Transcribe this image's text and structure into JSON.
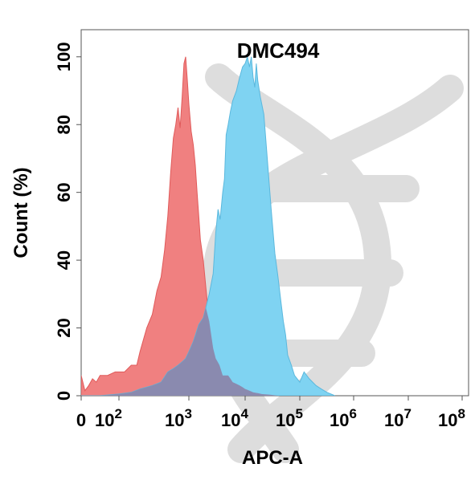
{
  "chart_data": {
    "type": "area",
    "title": "DMC494",
    "xlabel": "APC-A",
    "ylabel": "Count  (%)",
    "x_scale": "log",
    "x_ticks": [
      {
        "value": 0,
        "label": "0",
        "exp": ""
      },
      {
        "value": 100,
        "label": "10",
        "exp": "2"
      },
      {
        "value": 1000,
        "label": "10",
        "exp": "3"
      },
      {
        "value": 10000,
        "label": "10",
        "exp": "4"
      },
      {
        "value": 100000,
        "label": "10",
        "exp": "5"
      },
      {
        "value": 1000000,
        "label": "10",
        "exp": "6"
      },
      {
        "value": 10000000,
        "label": "10",
        "exp": "7"
      },
      {
        "value": 100000000,
        "label": "10",
        "exp": "8"
      }
    ],
    "y_ticks": [
      0,
      20,
      40,
      60,
      80,
      100
    ],
    "ylim": [
      0,
      108
    ],
    "grid": false,
    "legend": "none",
    "series": [
      {
        "color": "#f08080",
        "stroke": "#e05a5a",
        "points": [
          [
            0,
            6
          ],
          [
            10,
            1.5
          ],
          [
            20,
            3
          ],
          [
            30,
            5
          ],
          [
            40,
            4
          ],
          [
            50,
            6
          ],
          [
            70,
            6
          ],
          [
            90,
            7
          ],
          [
            120,
            7
          ],
          [
            150,
            9
          ],
          [
            180,
            9
          ],
          [
            200,
            13
          ],
          [
            250,
            20
          ],
          [
            300,
            24
          ],
          [
            350,
            31
          ],
          [
            400,
            35
          ],
          [
            450,
            43
          ],
          [
            500,
            53
          ],
          [
            550,
            66
          ],
          [
            600,
            76
          ],
          [
            650,
            80
          ],
          [
            700,
            85
          ],
          [
            750,
            79
          ],
          [
            800,
            88
          ],
          [
            850,
            98
          ],
          [
            900,
            100
          ],
          [
            950,
            93
          ],
          [
            1000,
            86
          ],
          [
            1100,
            78
          ],
          [
            1200,
            74
          ],
          [
            1300,
            68
          ],
          [
            1400,
            60
          ],
          [
            1500,
            53
          ],
          [
            1600,
            46
          ],
          [
            1800,
            40
          ],
          [
            2000,
            32
          ],
          [
            2300,
            22
          ],
          [
            2700,
            14
          ],
          [
            3000,
            11
          ],
          [
            3500,
            9
          ],
          [
            4000,
            6
          ],
          [
            5000,
            6
          ],
          [
            6000,
            4
          ],
          [
            8000,
            3
          ],
          [
            10000,
            2
          ],
          [
            14000,
            1
          ],
          [
            20000,
            0.5
          ],
          [
            40000,
            0
          ]
        ]
      },
      {
        "color": "#7fd3f2",
        "stroke": "#5bb8dd",
        "points": [
          [
            0,
            0
          ],
          [
            50,
            0
          ],
          [
            100,
            0.5
          ],
          [
            150,
            1
          ],
          [
            200,
            2
          ],
          [
            300,
            3
          ],
          [
            400,
            4
          ],
          [
            500,
            7
          ],
          [
            600,
            8
          ],
          [
            700,
            9
          ],
          [
            800,
            10
          ],
          [
            900,
            11
          ],
          [
            1000,
            13
          ],
          [
            1200,
            16
          ],
          [
            1500,
            21
          ],
          [
            1800,
            23
          ],
          [
            2000,
            26
          ],
          [
            2300,
            30
          ],
          [
            2700,
            36
          ],
          [
            3000,
            48
          ],
          [
            3300,
            55
          ],
          [
            3600,
            52
          ],
          [
            4000,
            60
          ],
          [
            4300,
            64
          ],
          [
            4600,
            77
          ],
          [
            5000,
            80
          ],
          [
            5500,
            84
          ],
          [
            6000,
            87
          ],
          [
            7000,
            90
          ],
          [
            8000,
            94
          ],
          [
            9000,
            97
          ],
          [
            10000,
            98
          ],
          [
            11000,
            100
          ],
          [
            12000,
            97
          ],
          [
            13000,
            100
          ],
          [
            14000,
            94
          ],
          [
            15000,
            91
          ],
          [
            16000,
            98
          ],
          [
            17000,
            93
          ],
          [
            19000,
            88
          ],
          [
            22000,
            83
          ],
          [
            26000,
            68
          ],
          [
            30000,
            55
          ],
          [
            35000,
            42
          ],
          [
            40000,
            35
          ],
          [
            45000,
            28
          ],
          [
            50000,
            22
          ],
          [
            55000,
            18
          ],
          [
            60000,
            12
          ],
          [
            70000,
            9
          ],
          [
            80000,
            6
          ],
          [
            100000,
            4
          ],
          [
            120000,
            7
          ],
          [
            150000,
            5
          ],
          [
            200000,
            3
          ],
          [
            250000,
            2
          ],
          [
            320000,
            1
          ],
          [
            450000,
            0
          ]
        ]
      }
    ],
    "overlap_color": "#8a8aaf"
  },
  "watermark": "dna-helix-icon"
}
